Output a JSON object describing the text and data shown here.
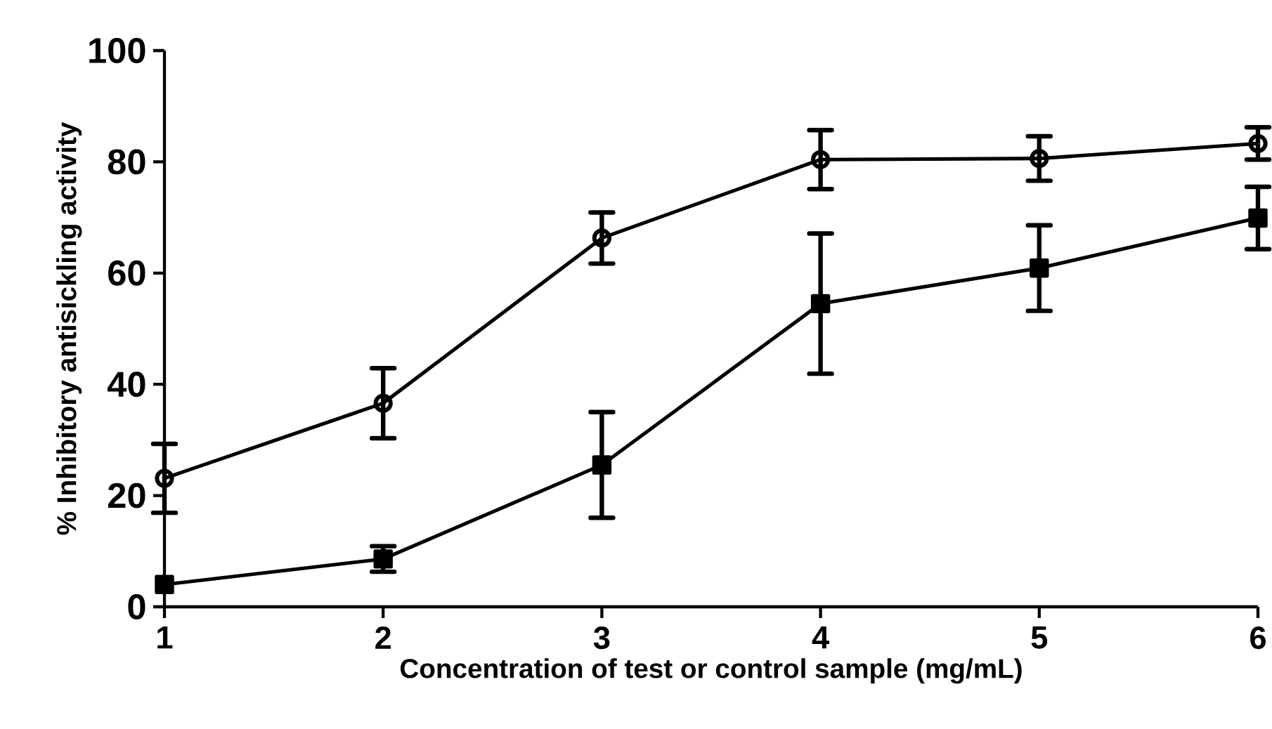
{
  "chart_data": {
    "type": "line",
    "xlabel": "Concentration of test or control sample (mg/mL)",
    "ylabel": "% Inhibitory antisickling activity",
    "x": [
      1,
      2,
      3,
      4,
      5,
      6
    ],
    "series": [
      {
        "color": "#000000",
        "marker": "circle",
        "values": [
          23.1,
          36.6,
          66.3,
          80.4,
          80.6,
          83.3
        ],
        "errors": [
          6.2,
          6.3,
          4.6,
          5.3,
          4.0,
          2.9
        ]
      },
      {
        "color": "#000000",
        "marker": "square",
        "values": [
          4.0,
          8.6,
          25.5,
          54.5,
          60.9,
          69.9
        ],
        "errors": [
          null,
          2.3,
          9.5,
          12.6,
          7.7,
          5.6
        ]
      }
    ],
    "xlim": [
      1,
      6
    ],
    "xticks": [
      1,
      2,
      3,
      4,
      5,
      6
    ],
    "ylim": [
      0,
      100
    ],
    "yticks": [
      0,
      20,
      40,
      60,
      80,
      100
    ],
    "grid": false,
    "line_style": "solid"
  }
}
